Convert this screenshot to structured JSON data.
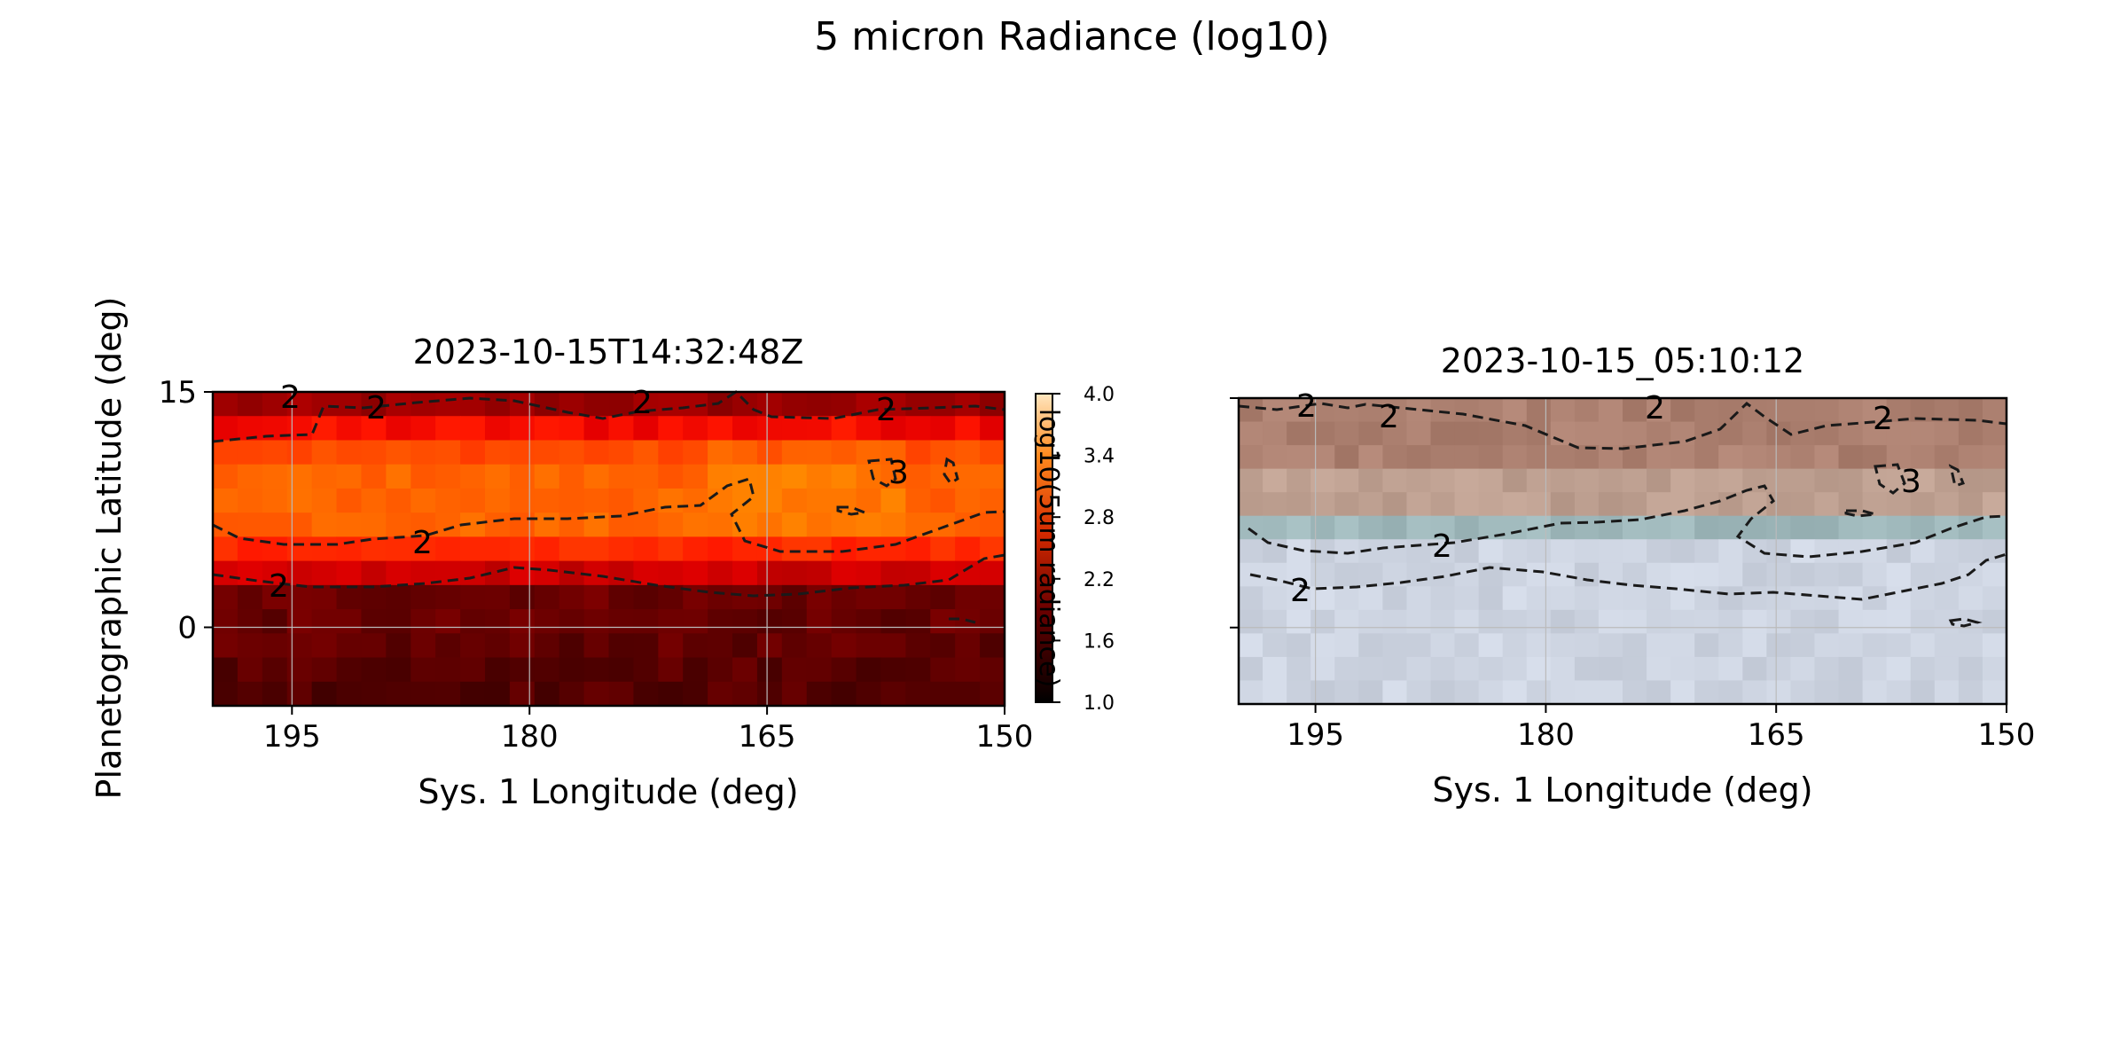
{
  "suptitle": "5 micron Radiance (log10)",
  "colors": {
    "contour": "#1a1a1a",
    "grid": "#bbbbbb"
  },
  "chart_data": [
    {
      "type": "heatmap",
      "title": "2023-10-15T14:32:48Z",
      "xlabel": "Sys. 1 Longitude (deg)",
      "ylabel": "Planetographic Latitude (deg)",
      "x_ticks": [
        195,
        180,
        165,
        150
      ],
      "y_ticks": [
        15,
        0
      ],
      "xlim": [
        200,
        150
      ],
      "ylim": [
        -5,
        15
      ],
      "grid": true,
      "colormap": "gist_heat",
      "contour_levels": [
        2,
        3
      ],
      "colorbar": {
        "label": "log10(5um radiance)",
        "ticks": [
          "4.0",
          "3.4",
          "2.8",
          "2.2",
          "1.6",
          "1.0"
        ],
        "range": [
          1.0,
          4.0
        ]
      }
    },
    {
      "type": "heatmap",
      "title": "2023-10-15_05:10:12",
      "xlabel": "Sys. 1 Longitude (deg)",
      "x_ticks": [
        195,
        180,
        165,
        150
      ],
      "xlim": [
        200,
        150
      ],
      "ylim": [
        -5,
        15
      ],
      "grid": true,
      "colormap": "true-color composite",
      "contour_levels": [
        2,
        3
      ]
    }
  ]
}
